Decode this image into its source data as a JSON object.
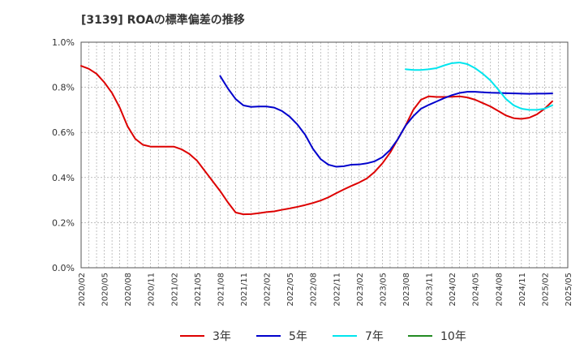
{
  "title": "[3139]  ROAの標準偏差の推移",
  "chart_data": {
    "type": "line",
    "title": "[3139]  ROAの標準偏差の推移",
    "xlabel": "",
    "ylabel": "",
    "ylim": [
      0,
      1.0
    ],
    "yticks": [
      "0.0%",
      "0.2%",
      "0.4%",
      "0.6%",
      "0.8%",
      "1.0%"
    ],
    "ytick_values": [
      0,
      0.2,
      0.4,
      0.6,
      0.8,
      1.0
    ],
    "xticks": [
      "2020/02",
      "2020/05",
      "2020/08",
      "2020/11",
      "2021/02",
      "2021/05",
      "2021/08",
      "2021/11",
      "2022/02",
      "2022/05",
      "2022/08",
      "2022/11",
      "2023/02",
      "2023/05",
      "2023/08",
      "2023/11",
      "2024/02",
      "2024/05",
      "2024/08",
      "2024/11",
      "2025/02",
      "2025/05"
    ],
    "grid": true,
    "legend_position": "bottom",
    "series": [
      {
        "name": "3年",
        "color": "#dd0000",
        "points": [
          [
            "2020/02",
            0.895
          ],
          [
            "2020/03",
            0.882
          ],
          [
            "2020/04",
            0.86
          ],
          [
            "2020/05",
            0.822
          ],
          [
            "2020/06",
            0.775
          ],
          [
            "2020/07",
            0.71
          ],
          [
            "2020/08",
            0.628
          ],
          [
            "2020/09",
            0.572
          ],
          [
            "2020/10",
            0.545
          ],
          [
            "2020/11",
            0.537
          ],
          [
            "2020/12",
            0.537
          ],
          [
            "2021/01",
            0.537
          ],
          [
            "2021/02",
            0.537
          ],
          [
            "2021/03",
            0.525
          ],
          [
            "2021/04",
            0.505
          ],
          [
            "2021/05",
            0.475
          ],
          [
            "2021/06",
            0.43
          ],
          [
            "2021/07",
            0.385
          ],
          [
            "2021/08",
            0.34
          ],
          [
            "2021/09",
            0.29
          ],
          [
            "2021/10",
            0.245
          ],
          [
            "2021/11",
            0.237
          ],
          [
            "2021/12",
            0.238
          ],
          [
            "2022/01",
            0.242
          ],
          [
            "2022/02",
            0.247
          ],
          [
            "2022/03",
            0.25
          ],
          [
            "2022/04",
            0.257
          ],
          [
            "2022/05",
            0.263
          ],
          [
            "2022/06",
            0.27
          ],
          [
            "2022/07",
            0.278
          ],
          [
            "2022/08",
            0.287
          ],
          [
            "2022/09",
            0.298
          ],
          [
            "2022/10",
            0.312
          ],
          [
            "2022/11",
            0.33
          ],
          [
            "2022/12",
            0.347
          ],
          [
            "2023/01",
            0.363
          ],
          [
            "2023/02",
            0.378
          ],
          [
            "2023/03",
            0.396
          ],
          [
            "2023/04",
            0.425
          ],
          [
            "2023/05",
            0.463
          ],
          [
            "2023/06",
            0.51
          ],
          [
            "2023/07",
            0.57
          ],
          [
            "2023/08",
            0.63
          ],
          [
            "2023/09",
            0.7
          ],
          [
            "2023/10",
            0.745
          ],
          [
            "2023/11",
            0.76
          ],
          [
            "2023/12",
            0.757
          ],
          [
            "2024/01",
            0.757
          ],
          [
            "2024/02",
            0.758
          ],
          [
            "2024/03",
            0.76
          ],
          [
            "2024/04",
            0.755
          ],
          [
            "2024/05",
            0.745
          ],
          [
            "2024/06",
            0.73
          ],
          [
            "2024/07",
            0.715
          ],
          [
            "2024/08",
            0.695
          ],
          [
            "2024/09",
            0.675
          ],
          [
            "2024/10",
            0.663
          ],
          [
            "2024/11",
            0.66
          ],
          [
            "2024/12",
            0.665
          ],
          [
            "2025/01",
            0.68
          ],
          [
            "2025/02",
            0.705
          ],
          [
            "2025/03",
            0.738
          ]
        ]
      },
      {
        "name": "5年",
        "color": "#0000cc",
        "points": [
          [
            "2021/08",
            0.85
          ],
          [
            "2021/09",
            0.795
          ],
          [
            "2021/10",
            0.748
          ],
          [
            "2021/11",
            0.72
          ],
          [
            "2021/12",
            0.713
          ],
          [
            "2022/01",
            0.715
          ],
          [
            "2022/02",
            0.715
          ],
          [
            "2022/03",
            0.71
          ],
          [
            "2022/04",
            0.695
          ],
          [
            "2022/05",
            0.67
          ],
          [
            "2022/06",
            0.635
          ],
          [
            "2022/07",
            0.59
          ],
          [
            "2022/08",
            0.528
          ],
          [
            "2022/09",
            0.482
          ],
          [
            "2022/10",
            0.457
          ],
          [
            "2022/11",
            0.448
          ],
          [
            "2022/12",
            0.45
          ],
          [
            "2023/01",
            0.457
          ],
          [
            "2023/02",
            0.458
          ],
          [
            "2023/03",
            0.463
          ],
          [
            "2023/04",
            0.472
          ],
          [
            "2023/05",
            0.49
          ],
          [
            "2023/06",
            0.522
          ],
          [
            "2023/07",
            0.57
          ],
          [
            "2023/08",
            0.63
          ],
          [
            "2023/09",
            0.672
          ],
          [
            "2023/10",
            0.705
          ],
          [
            "2023/11",
            0.722
          ],
          [
            "2023/12",
            0.737
          ],
          [
            "2024/01",
            0.752
          ],
          [
            "2024/02",
            0.765
          ],
          [
            "2024/03",
            0.775
          ],
          [
            "2024/04",
            0.78
          ],
          [
            "2024/05",
            0.78
          ],
          [
            "2024/06",
            0.778
          ],
          [
            "2024/07",
            0.776
          ],
          [
            "2024/08",
            0.775
          ],
          [
            "2024/09",
            0.774
          ],
          [
            "2024/10",
            0.773
          ],
          [
            "2024/11",
            0.772
          ],
          [
            "2024/12",
            0.771
          ],
          [
            "2025/01",
            0.772
          ],
          [
            "2025/02",
            0.772
          ],
          [
            "2025/03",
            0.773
          ]
        ]
      },
      {
        "name": "7年",
        "color": "#00e5ee",
        "points": [
          [
            "2023/08",
            0.88
          ],
          [
            "2023/09",
            0.877
          ],
          [
            "2023/10",
            0.877
          ],
          [
            "2023/11",
            0.88
          ],
          [
            "2023/12",
            0.885
          ],
          [
            "2024/01",
            0.897
          ],
          [
            "2024/02",
            0.907
          ],
          [
            "2024/03",
            0.91
          ],
          [
            "2024/04",
            0.903
          ],
          [
            "2024/05",
            0.885
          ],
          [
            "2024/06",
            0.86
          ],
          [
            "2024/07",
            0.83
          ],
          [
            "2024/08",
            0.79
          ],
          [
            "2024/09",
            0.748
          ],
          [
            "2024/10",
            0.72
          ],
          [
            "2024/11",
            0.705
          ],
          [
            "2024/12",
            0.7
          ],
          [
            "2025/01",
            0.7
          ],
          [
            "2025/02",
            0.705
          ],
          [
            "2025/03",
            0.72
          ]
        ]
      },
      {
        "name": "10年",
        "color": "#228b22",
        "points": []
      }
    ]
  }
}
